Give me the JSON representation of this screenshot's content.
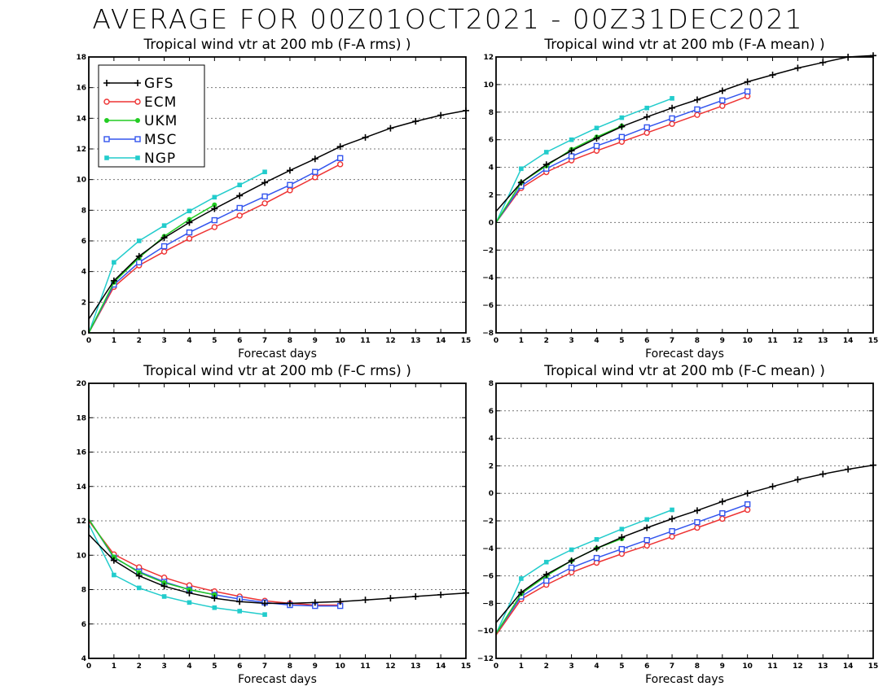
{
  "page_title": "AVERAGE FOR 00Z01OCT2021 - 00Z31DEC2021",
  "series_styles": [
    {
      "name": "GFS",
      "color": "#000000",
      "marker": "plus"
    },
    {
      "name": "ECM",
      "color": "#ee3333",
      "marker": "circle-open"
    },
    {
      "name": "UKM",
      "color": "#22cc22",
      "marker": "circle-filled"
    },
    {
      "name": "MSC",
      "color": "#3355ee",
      "marker": "square-open"
    },
    {
      "name": "NGP",
      "color": "#22cccc",
      "marker": "square-filled"
    }
  ],
  "chart_data": [
    {
      "type": "line",
      "title": "Tropical wind vtr at 200 mb (F-A rms) )",
      "xlabel": "Forecast days",
      "ylabel": "",
      "xlim": [
        0,
        15
      ],
      "ylim": [
        0,
        18
      ],
      "yticks": [
        0,
        2,
        4,
        6,
        8,
        10,
        12,
        14,
        16,
        18
      ],
      "grid": "horizontal dotted",
      "legend": "top-left",
      "series": [
        {
          "name": "GFS",
          "x": [
            0,
            1,
            2,
            3,
            4,
            5,
            6,
            7,
            8,
            9,
            10,
            11,
            12,
            13,
            14,
            15
          ],
          "values": [
            0.9,
            3.4,
            5.0,
            6.2,
            7.2,
            8.1,
            8.95,
            9.8,
            10.6,
            11.35,
            12.15,
            12.75,
            13.35,
            13.8,
            14.2,
            14.5
          ]
        },
        {
          "name": "ECM",
          "x": [
            0,
            1,
            2,
            3,
            4,
            5,
            6,
            7,
            8,
            9,
            10
          ],
          "values": [
            0,
            3.0,
            4.4,
            5.3,
            6.15,
            6.9,
            7.65,
            8.45,
            9.3,
            10.15,
            11.0
          ]
        },
        {
          "name": "UKM",
          "x": [
            0,
            1,
            2,
            3,
            4,
            5
          ],
          "values": [
            0,
            3.3,
            4.9,
            6.3,
            7.4,
            8.35
          ]
        },
        {
          "name": "MSC",
          "x": [
            0,
            1,
            2,
            3,
            4,
            5,
            6,
            7,
            8,
            9,
            10
          ],
          "values": [
            0,
            3.15,
            4.6,
            5.65,
            6.55,
            7.35,
            8.15,
            8.9,
            9.65,
            10.5,
            11.4
          ]
        },
        {
          "name": "NGP",
          "x": [
            0,
            1,
            2,
            3,
            4,
            5,
            6,
            7
          ],
          "values": [
            0,
            4.6,
            6.0,
            7.0,
            7.95,
            8.85,
            9.65,
            10.5
          ]
        }
      ]
    },
    {
      "type": "line",
      "title": "Tropical wind vtr at 200 mb (F-A mean) )",
      "xlabel": "Forecast days",
      "ylabel": "",
      "xlim": [
        0,
        15
      ],
      "ylim": [
        -8,
        12
      ],
      "yticks": [
        -8,
        -6,
        -4,
        -2,
        0,
        2,
        4,
        6,
        8,
        10,
        12
      ],
      "grid": "horizontal dotted",
      "legend": "none",
      "series": [
        {
          "name": "GFS",
          "x": [
            0,
            1,
            2,
            3,
            4,
            5,
            6,
            7,
            8,
            9,
            10,
            11,
            12,
            13,
            14,
            15
          ],
          "values": [
            0.8,
            2.9,
            4.2,
            5.2,
            6.1,
            6.95,
            7.65,
            8.3,
            8.9,
            9.55,
            10.2,
            10.7,
            11.2,
            11.6,
            12.0,
            12.1
          ]
        },
        {
          "name": "ECM",
          "x": [
            0,
            1,
            2,
            3,
            4,
            5,
            6,
            7,
            8,
            9,
            10
          ],
          "values": [
            0,
            2.5,
            3.65,
            4.5,
            5.2,
            5.85,
            6.5,
            7.15,
            7.8,
            8.45,
            9.15
          ]
        },
        {
          "name": "UKM",
          "x": [
            0,
            1,
            2,
            3,
            4,
            5
          ],
          "values": [
            0,
            2.9,
            4.1,
            5.3,
            6.2,
            7.0
          ]
        },
        {
          "name": "MSC",
          "x": [
            0,
            1,
            2,
            3,
            4,
            5,
            6,
            7,
            8,
            9,
            10
          ],
          "values": [
            0,
            2.65,
            3.9,
            4.8,
            5.55,
            6.2,
            6.9,
            7.55,
            8.2,
            8.85,
            9.5
          ]
        },
        {
          "name": "NGP",
          "x": [
            0,
            1,
            2,
            3,
            4,
            5,
            6,
            7
          ],
          "values": [
            0,
            3.9,
            5.1,
            6.0,
            6.85,
            7.6,
            8.3,
            9.0
          ]
        }
      ]
    },
    {
      "type": "line",
      "title": "Tropical wind vtr at 200 mb (F-C rms) )",
      "xlabel": "Forecast days",
      "ylabel": "",
      "xlim": [
        0,
        15
      ],
      "ylim": [
        4,
        20
      ],
      "yticks": [
        4,
        6,
        8,
        10,
        12,
        14,
        16,
        18,
        20
      ],
      "grid": "horizontal dotted",
      "legend": "none",
      "series": [
        {
          "name": "GFS",
          "x": [
            0,
            1,
            2,
            3,
            4,
            5,
            6,
            7,
            8,
            9,
            10,
            11,
            12,
            13,
            14,
            15
          ],
          "values": [
            11.2,
            9.7,
            8.8,
            8.2,
            7.8,
            7.5,
            7.3,
            7.2,
            7.2,
            7.25,
            7.3,
            7.4,
            7.5,
            7.6,
            7.7,
            7.8
          ]
        },
        {
          "name": "ECM",
          "x": [
            0,
            1,
            2,
            3,
            4,
            5,
            6,
            7,
            8,
            9,
            10
          ],
          "values": [
            12.0,
            10.05,
            9.3,
            8.7,
            8.25,
            7.9,
            7.6,
            7.35,
            7.2,
            7.1,
            7.1
          ]
        },
        {
          "name": "UKM",
          "x": [
            0,
            1,
            2,
            3,
            4,
            5
          ],
          "values": [
            12.1,
            9.9,
            9.0,
            8.4,
            8.0,
            7.7
          ]
        },
        {
          "name": "MSC",
          "x": [
            0,
            1,
            2,
            3,
            4,
            5,
            6,
            7,
            8,
            9,
            10
          ],
          "values": [
            12.1,
            9.85,
            9.05,
            8.45,
            8.0,
            7.7,
            7.45,
            7.25,
            7.1,
            7.05,
            7.05
          ]
        },
        {
          "name": "NGP",
          "x": [
            0,
            1,
            2,
            3,
            4,
            5,
            6,
            7
          ],
          "values": [
            11.8,
            8.85,
            8.1,
            7.6,
            7.25,
            6.95,
            6.75,
            6.55
          ]
        }
      ]
    },
    {
      "type": "line",
      "title": "Tropical wind vtr at 200 mb (F-C mean) )",
      "xlabel": "Forecast days",
      "ylabel": "",
      "xlim": [
        0,
        15
      ],
      "ylim": [
        -12,
        8
      ],
      "yticks": [
        -12,
        -10,
        -8,
        -6,
        -4,
        -2,
        0,
        2,
        4,
        6,
        8
      ],
      "grid": "horizontal dotted",
      "legend": "none",
      "series": [
        {
          "name": "GFS",
          "x": [
            0,
            1,
            2,
            3,
            4,
            5,
            6,
            7,
            8,
            9,
            10,
            11,
            12,
            13,
            14,
            15
          ],
          "values": [
            -9.4,
            -7.2,
            -5.9,
            -4.9,
            -4.0,
            -3.2,
            -2.5,
            -1.85,
            -1.25,
            -0.6,
            0.0,
            0.5,
            1.0,
            1.4,
            1.75,
            2.05
          ]
        },
        {
          "name": "ECM",
          "x": [
            0,
            1,
            2,
            3,
            4,
            5,
            6,
            7,
            8,
            9,
            10
          ],
          "values": [
            -10.3,
            -7.7,
            -6.65,
            -5.75,
            -5.05,
            -4.4,
            -3.8,
            -3.15,
            -2.5,
            -1.85,
            -1.2
          ]
        },
        {
          "name": "UKM",
          "x": [
            0,
            1,
            2,
            3,
            4,
            5
          ],
          "values": [
            -10.2,
            -7.3,
            -6.0,
            -4.9,
            -4.0,
            -3.3
          ]
        },
        {
          "name": "MSC",
          "x": [
            0,
            1,
            2,
            3,
            4,
            5,
            6,
            7,
            8,
            9,
            10
          ],
          "values": [
            -10.2,
            -7.5,
            -6.35,
            -5.4,
            -4.7,
            -4.05,
            -3.4,
            -2.75,
            -2.1,
            -1.45,
            -0.8
          ]
        },
        {
          "name": "NGP",
          "x": [
            0,
            1,
            2,
            3,
            4,
            5,
            6,
            7
          ],
          "values": [
            -10.2,
            -6.2,
            -5.0,
            -4.1,
            -3.35,
            -2.6,
            -1.9,
            -1.2
          ]
        }
      ]
    }
  ]
}
